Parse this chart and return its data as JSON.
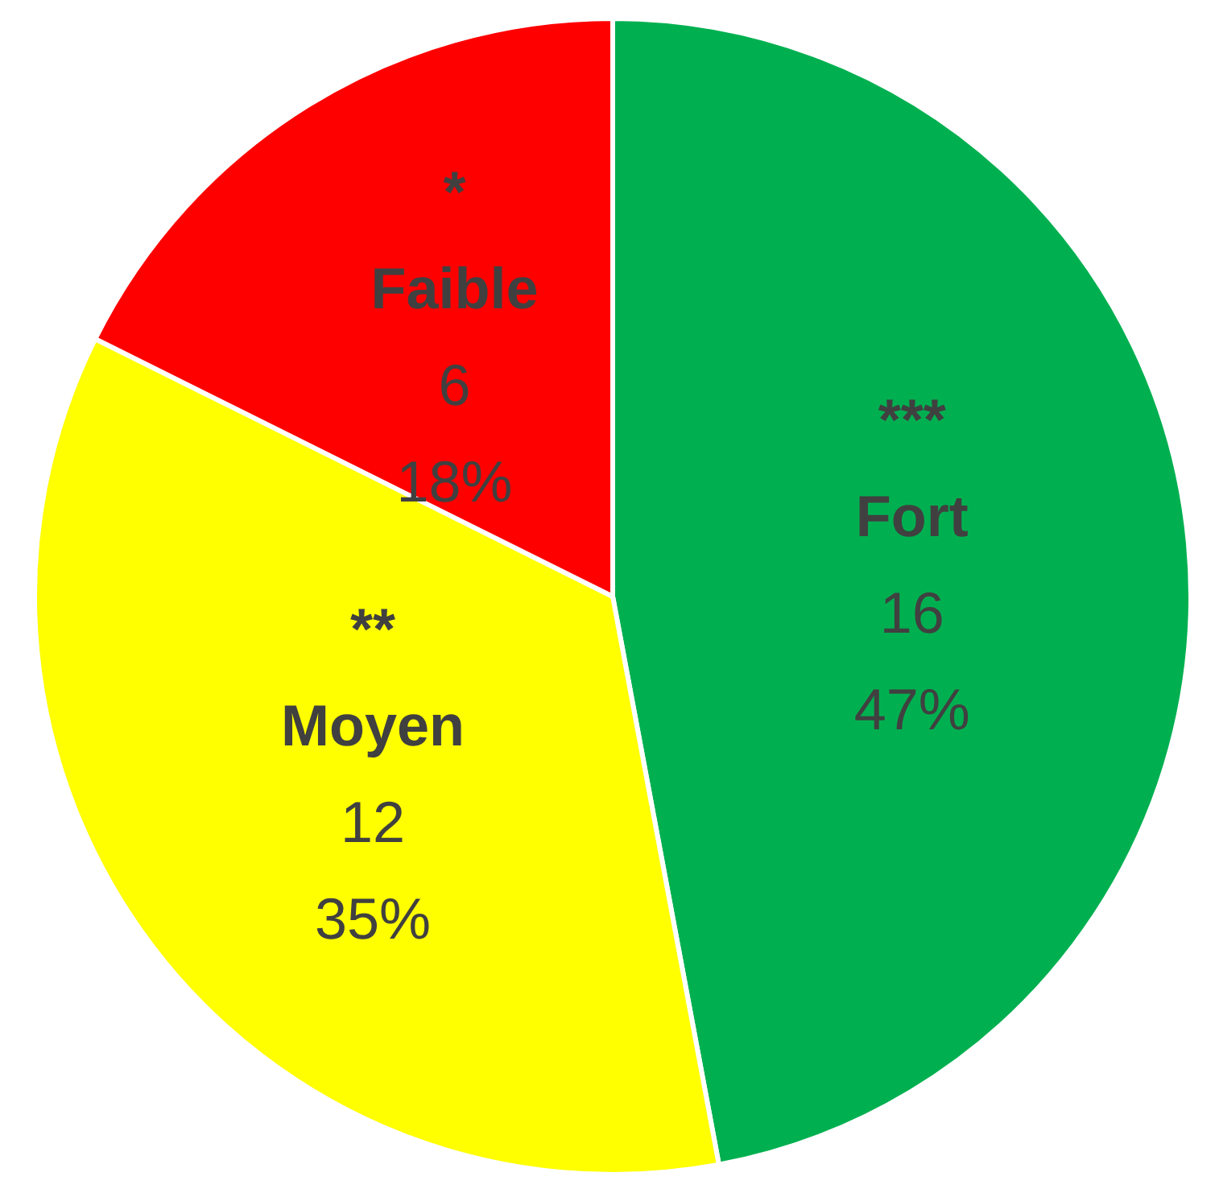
{
  "chart_data": {
    "type": "pie",
    "categories": [
      "*** Fort",
      "** Moyen",
      "* Faible"
    ],
    "values": [
      16,
      12,
      6
    ],
    "colors": [
      "#00b050",
      "#ffff00",
      "#ff0000"
    ],
    "value_labels": [
      "16\n47%",
      "12\n35%",
      "6\n18%"
    ]
  }
}
